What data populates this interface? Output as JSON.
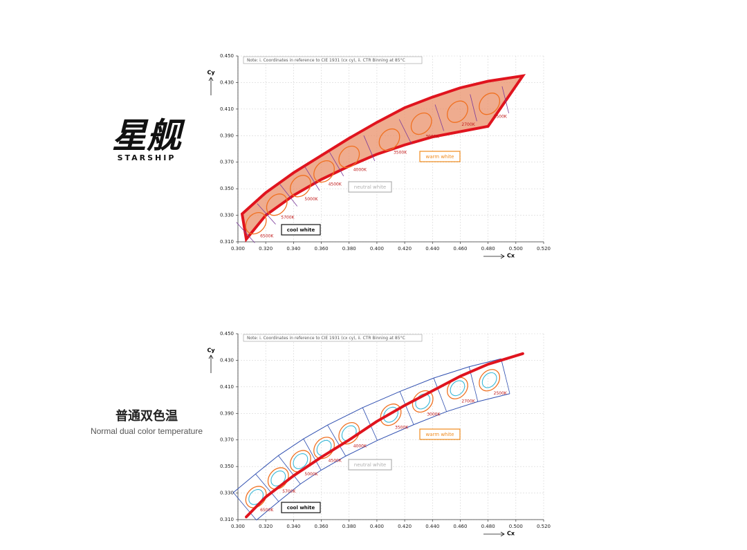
{
  "logo": {
    "name": "星舰",
    "subtitle": "STARSHIP"
  },
  "caption": {
    "title": "普通双色温",
    "subtitle": "Normal dual color temperature"
  },
  "chart_data": [
    {
      "type": "area",
      "note": "Note: i. Coordinates in reference to CIE 1931 (cx cy), ii. CTR Binning at 85°C",
      "x_label": "Cx",
      "y_label": "Cy",
      "color": "#e0141e",
      "fill": "#e9906a",
      "xlim": [
        0.3,
        0.52
      ],
      "ylim": [
        0.31,
        0.45
      ],
      "xticks": [
        {
          "value": 0.3,
          "label": "0.300"
        },
        {
          "value": 0.32,
          "label": "0.320"
        },
        {
          "value": 0.34,
          "label": "0.340"
        },
        {
          "value": 0.36,
          "label": "0.360"
        },
        {
          "value": 0.38,
          "label": "0.380"
        },
        {
          "value": 0.4,
          "label": "0.400"
        },
        {
          "value": 0.42,
          "label": "0.420"
        },
        {
          "value": 0.44,
          "label": "0.440"
        },
        {
          "value": 0.46,
          "label": "0.460"
        },
        {
          "value": 0.48,
          "label": "0.480"
        },
        {
          "value": 0.5,
          "label": "0.500"
        },
        {
          "value": 0.52,
          "label": "0.520"
        }
      ],
      "yticks": [
        {
          "value": 0.31,
          "label": "0.310"
        },
        {
          "value": 0.33,
          "label": "0.330"
        },
        {
          "value": 0.35,
          "label": "0.350"
        },
        {
          "value": 0.37,
          "label": "0.370"
        },
        {
          "value": 0.39,
          "label": "0.390"
        },
        {
          "value": 0.41,
          "label": "0.410"
        },
        {
          "value": 0.43,
          "label": "0.430"
        },
        {
          "value": 0.45,
          "label": "0.450"
        }
      ],
      "grid": true,
      "series": [
        {
          "x": [
            0.303,
            0.32,
            0.34,
            0.36,
            0.38,
            0.4,
            0.42,
            0.44,
            0.46,
            0.48,
            0.505
          ],
          "values": [
            0.331,
            0.347,
            0.362,
            0.375,
            0.388,
            0.4,
            0.411,
            0.419,
            0.426,
            0.431,
            0.435
          ]
        },
        {
          "x": [
            0.306,
            0.32,
            0.34,
            0.36,
            0.38,
            0.4,
            0.42,
            0.44,
            0.46,
            0.48,
            0.505
          ],
          "values": [
            0.312,
            0.33,
            0.345,
            0.357,
            0.367,
            0.376,
            0.383,
            0.389,
            0.393,
            0.397,
            0.435
          ]
        }
      ],
      "cct": {
        "labels": [
          "6500K",
          "5700K",
          "5000K",
          "4500K",
          "4000K",
          "3500K",
          "3000K",
          "2700K",
          "2500K"
        ],
        "x": [
          0.313,
          0.328,
          0.345,
          0.362,
          0.38,
          0.409,
          0.432,
          0.458,
          0.481
        ],
        "y": [
          0.324,
          0.338,
          0.352,
          0.363,
          0.374,
          0.387,
          0.399,
          0.408,
          0.414
        ]
      },
      "zones": [
        {
          "name": "cool white",
          "color": "#111111"
        },
        {
          "name": "neutral white",
          "color": "#b0b0b0"
        },
        {
          "name": "warm white",
          "color": "#f08a1c"
        }
      ]
    },
    {
      "type": "line",
      "note": "Note: i. Coordinates in reference to CIE 1931 (cx cy), ii. CTR Binning at 85°C",
      "x_label": "Cx",
      "y_label": "Cy",
      "color": "#e0141e",
      "xlim": [
        0.3,
        0.52
      ],
      "ylim": [
        0.31,
        0.45
      ],
      "xticks": [
        {
          "value": 0.3,
          "label": "0.300"
        },
        {
          "value": 0.32,
          "label": "0.320"
        },
        {
          "value": 0.34,
          "label": "0.340"
        },
        {
          "value": 0.36,
          "label": "0.360"
        },
        {
          "value": 0.38,
          "label": "0.380"
        },
        {
          "value": 0.4,
          "label": "0.400"
        },
        {
          "value": 0.42,
          "label": "0.420"
        },
        {
          "value": 0.44,
          "label": "0.440"
        },
        {
          "value": 0.46,
          "label": "0.460"
        },
        {
          "value": 0.48,
          "label": "0.480"
        },
        {
          "value": 0.5,
          "label": "0.500"
        },
        {
          "value": 0.52,
          "label": "0.520"
        }
      ],
      "yticks": [
        {
          "value": 0.31,
          "label": "0.310"
        },
        {
          "value": 0.33,
          "label": "0.330"
        },
        {
          "value": 0.35,
          "label": "0.350"
        },
        {
          "value": 0.37,
          "label": "0.370"
        },
        {
          "value": 0.39,
          "label": "0.390"
        },
        {
          "value": 0.41,
          "label": "0.410"
        },
        {
          "value": 0.43,
          "label": "0.430"
        },
        {
          "value": 0.45,
          "label": "0.450"
        }
      ],
      "grid": true,
      "series": [
        {
          "x": [
            0.306,
            0.32,
            0.34,
            0.36,
            0.38,
            0.4,
            0.42,
            0.44,
            0.46,
            0.48,
            0.505
          ],
          "values": [
            0.312,
            0.327,
            0.343,
            0.357,
            0.37,
            0.384,
            0.396,
            0.407,
            0.418,
            0.427,
            0.435
          ]
        }
      ],
      "cct": {
        "labels": [
          "6500K",
          "5700K",
          "5000K",
          "4500K",
          "4000K",
          "3500K",
          "3000K",
          "2700K",
          "2500K"
        ],
        "x": [
          0.313,
          0.329,
          0.345,
          0.362,
          0.38,
          0.41,
          0.433,
          0.458,
          0.481
        ],
        "y": [
          0.327,
          0.341,
          0.354,
          0.364,
          0.375,
          0.389,
          0.399,
          0.409,
          0.415
        ]
      },
      "zones": [
        {
          "name": "cool white",
          "color": "#111111"
        },
        {
          "name": "neutral white",
          "color": "#b0b0b0"
        },
        {
          "name": "warm white",
          "color": "#f08a1c"
        }
      ]
    }
  ]
}
